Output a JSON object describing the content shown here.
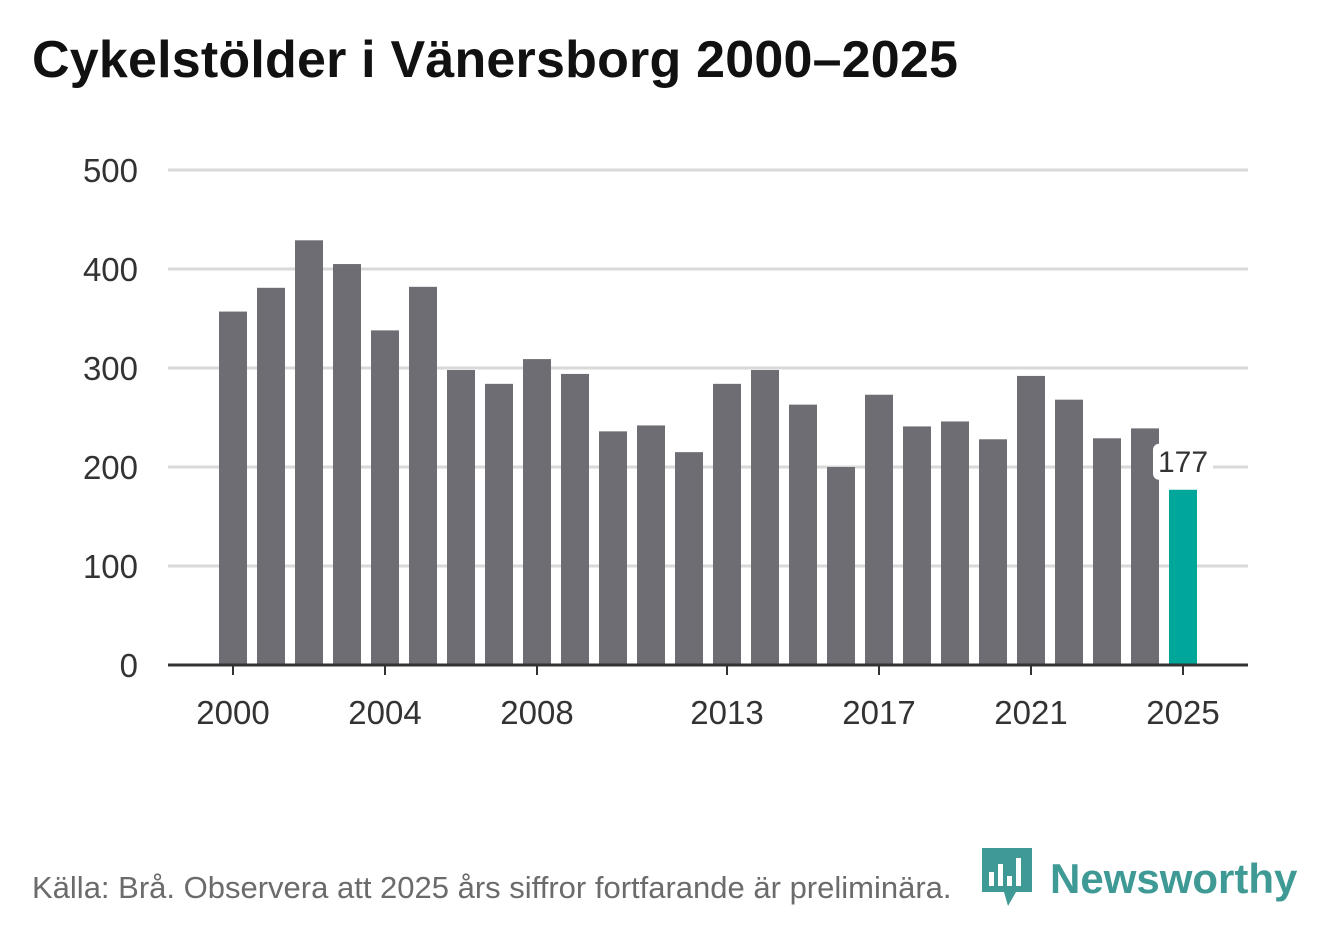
{
  "title": "Cykelstölder i Vänersborg 2000–2025",
  "source_note": "Källa: Brå. Observera att 2025 års siffror fortfarande är preliminära.",
  "brand": {
    "name": "Newsworthy",
    "color": "#3f9a95"
  },
  "colors": {
    "bar": "#6e6d73",
    "highlight": "#00a69a",
    "grid": "#d9d9d9",
    "axis": "#333333"
  },
  "chart_data": {
    "type": "bar",
    "categories": [
      "2000",
      "2001",
      "2002",
      "2003",
      "2004",
      "2005",
      "2006",
      "2007",
      "2008",
      "2009",
      "2010",
      "2011",
      "2012",
      "2013",
      "2014",
      "2015",
      "2016",
      "2017",
      "2018",
      "2019",
      "2020",
      "2021",
      "2022",
      "2023",
      "2024",
      "2025"
    ],
    "values": [
      357,
      381,
      429,
      405,
      338,
      382,
      298,
      284,
      309,
      294,
      236,
      242,
      215,
      284,
      298,
      263,
      200,
      273,
      241,
      246,
      228,
      292,
      268,
      229,
      239,
      177
    ],
    "highlight_index": 25,
    "annotation": {
      "category": "2025",
      "label": "177"
    },
    "x_tick_labels": [
      "2000",
      "2004",
      "2008",
      "2013",
      "2017",
      "2021",
      "2025"
    ],
    "y_ticks": [
      0,
      100,
      200,
      300,
      400,
      500
    ],
    "ylim": [
      0,
      500
    ],
    "xlabel": "",
    "ylabel": "",
    "grid": true
  }
}
